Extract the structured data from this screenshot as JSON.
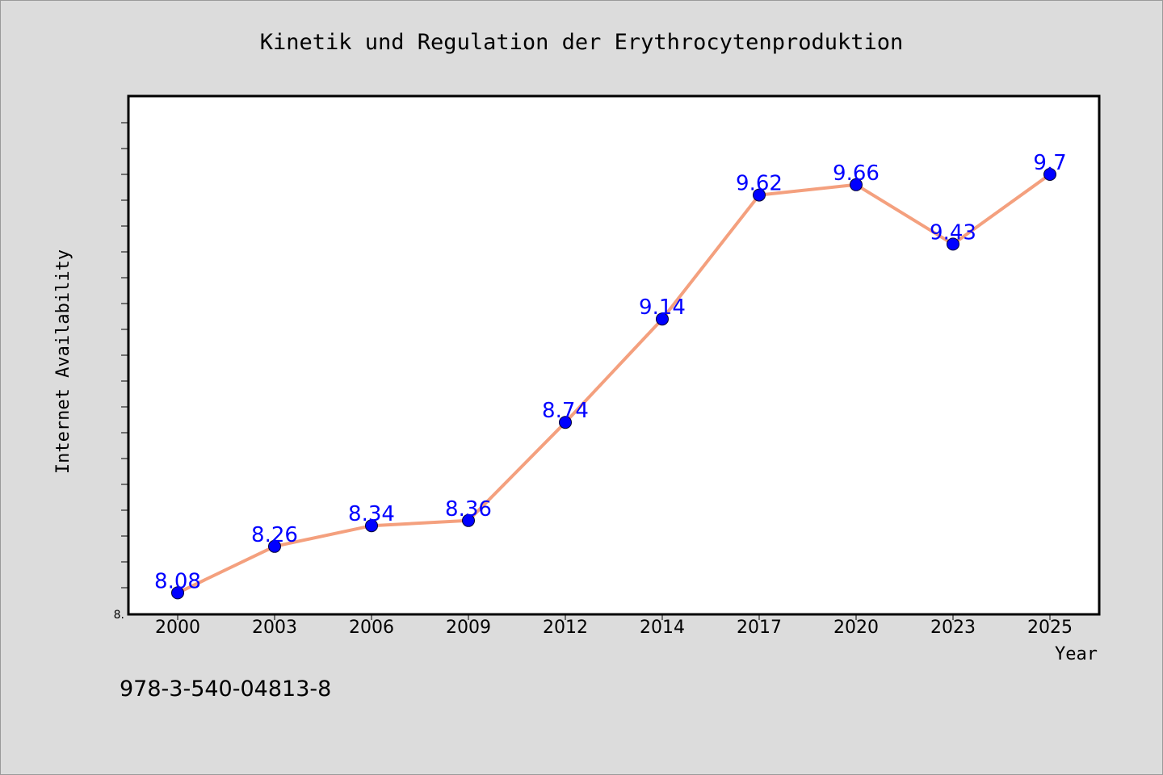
{
  "chart_data": {
    "type": "line",
    "title": "Kinetik und Regulation der Erythrocytenproduktion",
    "xlabel": "Year",
    "ylabel": "Internet Availability",
    "categories": [
      "2000",
      "2003",
      "2006",
      "2009",
      "2012",
      "2014",
      "2017",
      "2020",
      "2023",
      "2025"
    ],
    "series": [
      {
        "values": [
          8.08,
          8.26,
          8.34,
          8.36,
          8.74,
          9.14,
          9.62,
          9.66,
          9.43,
          9.7
        ],
        "labels": [
          "8.08",
          "8.26",
          "8.34",
          "8.36",
          "8.74",
          "9.14",
          "9.62",
          "9.66",
          "9.43",
          "9.7"
        ],
        "line_color": "#f4a07e",
        "marker_color": "#0000ff"
      }
    ],
    "ylim": [
      8.0,
      10.0
    ],
    "y_tick_label": "8.",
    "grid": false,
    "legend": "none"
  },
  "footer": {
    "isbn": "978-3-540-04813-8"
  },
  "colors": {
    "background": "#dcdcdc",
    "plot_background": "#ffffff",
    "label_color": "#0000ff"
  }
}
